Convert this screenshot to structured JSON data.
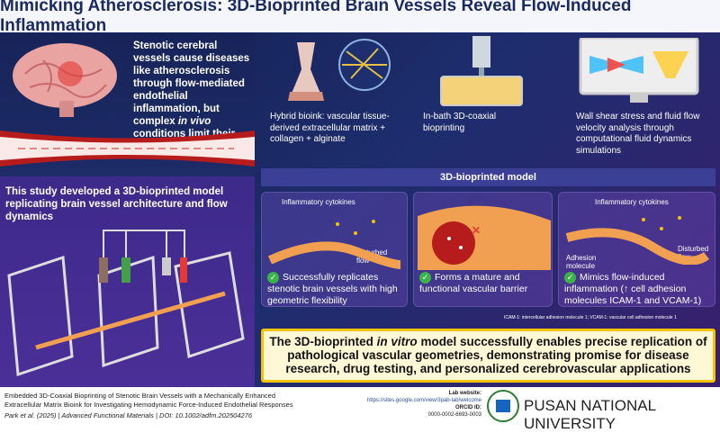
{
  "title": "Mimicking Atherosclerosis: 3D-Bioprinted Brain Vessels Reveal Flow-Induced Inflammation",
  "left": {
    "intro_pre": "Stenotic cerebral vessels cause diseases like atherosclerosis through flow-mediated endothelial inflammation, but complex ",
    "intro_italic": "in vivo",
    "intro_post": " conditions limit their study",
    "study": "This study developed a 3D-bioprinted model replicating brain vessel architecture and flow dynamics"
  },
  "methods": [
    {
      "text": "Hybrid bioink: vascular tissue-derived extracellular matrix + collagen + alginate"
    },
    {
      "text": "In-bath 3D-coaxial bioprinting"
    },
    {
      "text": "Wall shear stress and fluid flow velocity analysis through computational fluid dynamics simulations"
    }
  ],
  "section_label": "3D-bioprinted model",
  "cards": [
    {
      "labels": [
        "Inflammatory cytokines",
        "Disturbed flow"
      ],
      "text": "Successfully replicates stenotic brain vessels with high geometric flexibility"
    },
    {
      "labels": [],
      "text": "Forms a mature and functional vascular barrier"
    },
    {
      "labels": [
        "Inflammatory cytokines",
        "Disturbed flow",
        "Adhesion molecule"
      ],
      "text": "Mimics flow-induced inflammation (↑ cell adhesion molecules ICAM-1 and VCAM-1)"
    }
  ],
  "footnote": "ICAM-1: intercellular adhesion molecule 1; VCAM-1: vascular cell adhesion molecule 1",
  "conclusion_pre": "The 3D-bioprinted ",
  "conclusion_italic": "in vitro",
  "conclusion_post": " model successfully enables precise replication of pathological vascular geometries, demonstrating promise for disease research, drug testing, and personalized cerebrovascular applications",
  "footer": {
    "paper_title_1": "Embedded 3D-Coaxial Bioprinting of Stenotic Brain Vessels with a Mechanically Enhanced",
    "paper_title_2": "Extracellular Matrix Bioink for Investigating Hemodynamic Force-Induced Endothelial Responses",
    "citation": "Park et al. (2025)  |  Advanced Functional Materials  |  DOI: 10.1002/adfm.202504276",
    "lab_label": "Lab website:",
    "lab_url": "https://sites.google.com/view/3pab-lab/welcome",
    "orcid_label": "ORCID ID:",
    "orcid": "0000-0002-6693-0003",
    "university": "PUSAN NATIONAL UNIVERSITY"
  },
  "colors": {
    "title": "#1b2a5e",
    "accent_yellow": "#f5c400",
    "check_green": "#3bb34a",
    "vessel_red": "#c0262b"
  }
}
